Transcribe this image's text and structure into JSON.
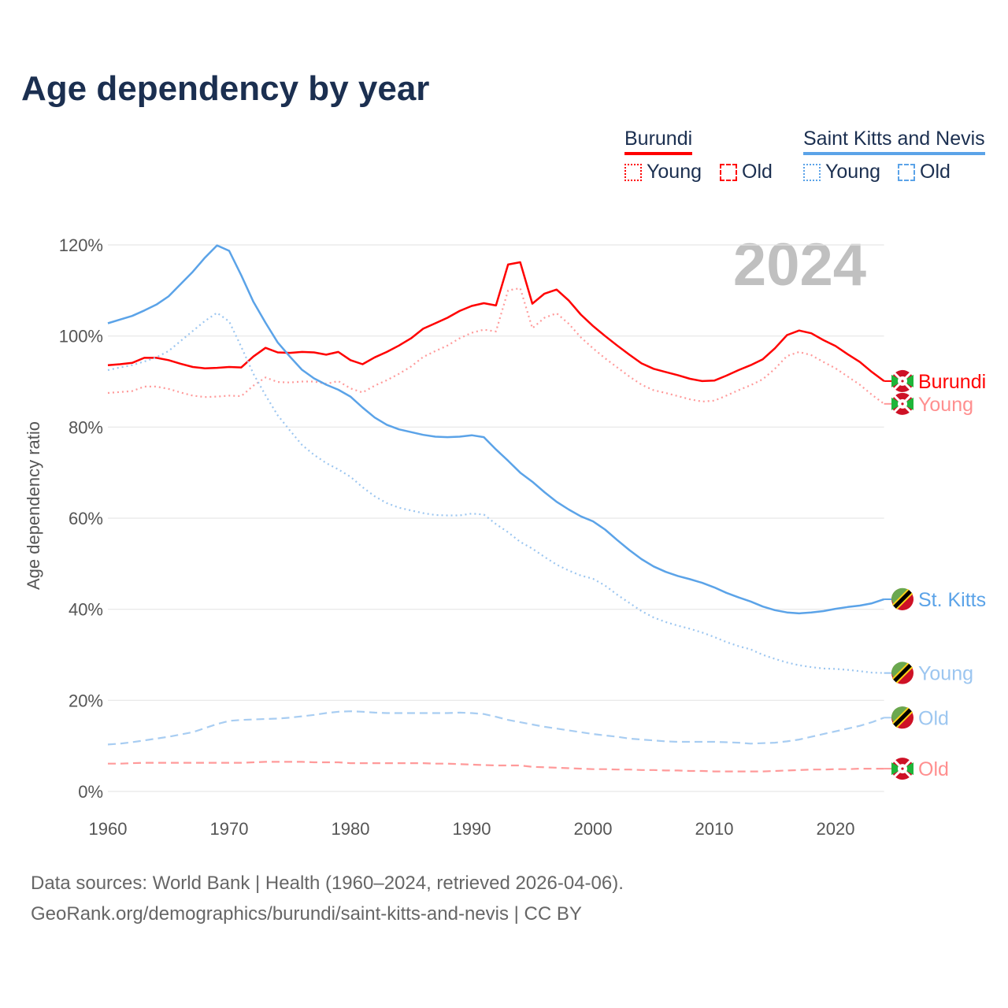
{
  "title": "Age dependency by year",
  "legend": {
    "groups": [
      {
        "name": "Burundi",
        "color": "#ff0000",
        "items": [
          {
            "label": "Young",
            "style": "dotted"
          },
          {
            "label": "Old",
            "style": "dashed"
          }
        ]
      },
      {
        "name": "Saint Kitts and Nevis",
        "color": "#5ba3e8",
        "items": [
          {
            "label": "Young",
            "style": "dotted"
          },
          {
            "label": "Old",
            "style": "dashed"
          }
        ]
      }
    ]
  },
  "year_watermark": "2024",
  "footer": {
    "line1": "Data sources: World Bank | Health (1960–2024, retrieved 2026-04-06).",
    "line2": "GeoRank.org/demographics/burundi/saint-kitts-and-nevis | CC BY"
  },
  "chart_data": {
    "type": "line",
    "title": "Age dependency by year",
    "xlabel": "",
    "ylabel": "Age dependency ratio",
    "xlim": [
      1960,
      2024
    ],
    "ylim": [
      0,
      120
    ],
    "x_ticks": [
      1960,
      1970,
      1980,
      1990,
      2000,
      2010,
      2020
    ],
    "y_ticks": [
      0,
      20,
      40,
      60,
      80,
      100,
      120
    ],
    "y_tick_labels": [
      "0%",
      "20%",
      "40%",
      "60%",
      "80%",
      "100%",
      "120%"
    ],
    "grid": true,
    "legend_position": "top-right",
    "x_start": 1960,
    "series": [
      {
        "name": "Burundi",
        "end_label": "Burundi",
        "flag": "burundi",
        "color": "#ff0000",
        "label_color": "#ff0000",
        "dash": "solid",
        "values": [
          93.6,
          93.8,
          94.1,
          95.2,
          95.2,
          94.7,
          93.9,
          93.2,
          92.9,
          93.0,
          93.2,
          93.1,
          95.5,
          97.4,
          96.4,
          96.3,
          96.5,
          96.4,
          95.9,
          96.5,
          94.7,
          93.8,
          95.3,
          96.5,
          97.9,
          99.5,
          101.6,
          102.8,
          104.0,
          105.5,
          106.6,
          107.2,
          106.7,
          115.7,
          116.2,
          107.1,
          109.3,
          110.2,
          107.8,
          104.7,
          102.2,
          100.0,
          97.9,
          95.9,
          94.0,
          92.8,
          92.1,
          91.4,
          90.6,
          90.1,
          90.2,
          91.3,
          92.5,
          93.6,
          94.9,
          97.3,
          100.2,
          101.2,
          100.6,
          99.1,
          97.8,
          96.0,
          94.3,
          92.1,
          90.1
        ]
      },
      {
        "name": "Burundi Young",
        "end_label": "Young",
        "flag": "burundi",
        "color": "#ff9a9a",
        "label_color": "#ff8f8f",
        "dash": "dotted",
        "values": [
          87.5,
          87.7,
          87.9,
          88.9,
          88.9,
          88.4,
          87.6,
          86.9,
          86.6,
          86.7,
          86.9,
          86.8,
          89.1,
          90.9,
          89.9,
          89.8,
          90.0,
          90.0,
          89.5,
          90.1,
          88.5,
          87.6,
          89.1,
          90.3,
          91.7,
          93.3,
          95.4,
          96.7,
          97.9,
          99.5,
          100.7,
          101.4,
          101.0,
          110.0,
          110.5,
          101.7,
          104.0,
          105.0,
          102.7,
          99.7,
          97.3,
          95.1,
          93.1,
          91.1,
          89.3,
          88.1,
          87.5,
          86.8,
          86.1,
          85.6,
          85.8,
          86.9,
          88.1,
          89.2,
          90.5,
          92.8,
          95.6,
          96.5,
          95.8,
          94.3,
          92.9,
          91.1,
          89.3,
          87.1,
          85.1
        ]
      },
      {
        "name": "Burundi Old",
        "end_label": "Old",
        "flag": "burundi",
        "color": "#ff9a9a",
        "label_color": "#ff8f8f",
        "dash": "dashed",
        "values": [
          6.1,
          6.1,
          6.2,
          6.3,
          6.3,
          6.3,
          6.3,
          6.3,
          6.3,
          6.3,
          6.3,
          6.3,
          6.4,
          6.5,
          6.5,
          6.5,
          6.5,
          6.4,
          6.4,
          6.4,
          6.2,
          6.2,
          6.2,
          6.2,
          6.2,
          6.2,
          6.2,
          6.1,
          6.1,
          6.0,
          5.9,
          5.8,
          5.7,
          5.7,
          5.7,
          5.4,
          5.3,
          5.2,
          5.1,
          5.0,
          4.9,
          4.9,
          4.8,
          4.8,
          4.7,
          4.7,
          4.6,
          4.6,
          4.5,
          4.5,
          4.4,
          4.4,
          4.4,
          4.4,
          4.4,
          4.5,
          4.6,
          4.7,
          4.8,
          4.8,
          4.9,
          4.9,
          5.0,
          5.0,
          5.0
        ]
      },
      {
        "name": "Saint Kitts and Nevis",
        "end_label": "St. Kitts",
        "flag": "kitts",
        "color": "#5ba3e8",
        "label_color": "#5ba3e8",
        "dash": "solid",
        "values": [
          102.8,
          103.6,
          104.4,
          105.6,
          106.9,
          108.7,
          111.4,
          114.1,
          117.2,
          119.9,
          118.7,
          113.3,
          107.5,
          102.9,
          98.6,
          95.5,
          92.6,
          90.7,
          89.3,
          88.2,
          86.7,
          84.3,
          82.1,
          80.5,
          79.5,
          78.9,
          78.3,
          77.9,
          77.8,
          77.9,
          78.2,
          77.8,
          75.1,
          72.6,
          70.0,
          68.0,
          65.7,
          63.6,
          61.9,
          60.4,
          59.3,
          57.5,
          55.2,
          53.0,
          51.0,
          49.4,
          48.2,
          47.3,
          46.6,
          45.8,
          44.8,
          43.6,
          42.6,
          41.7,
          40.6,
          39.8,
          39.3,
          39.1,
          39.3,
          39.6,
          40.1,
          40.5,
          40.8,
          41.3,
          42.2
        ]
      },
      {
        "name": "Saint Kitts and Nevis Young",
        "end_label": "Young",
        "flag": "kitts",
        "color": "#9cc6f0",
        "label_color": "#9cc6f0",
        "dash": "dotted",
        "values": [
          92.5,
          93.1,
          93.6,
          94.4,
          95.3,
          96.7,
          98.9,
          101.1,
          103.3,
          105.1,
          103.2,
          97.6,
          91.7,
          87.0,
          82.6,
          79.3,
          76.1,
          73.9,
          72.1,
          70.7,
          69.1,
          66.8,
          64.8,
          63.3,
          62.3,
          61.7,
          61.1,
          60.7,
          60.6,
          60.6,
          61.0,
          60.8,
          58.7,
          56.9,
          54.8,
          53.3,
          51.5,
          49.8,
          48.5,
          47.4,
          46.7,
          45.2,
          43.2,
          41.4,
          39.6,
          38.2,
          37.2,
          36.4,
          35.7,
          34.9,
          33.9,
          32.8,
          31.9,
          31.2,
          30.0,
          29.1,
          28.3,
          27.7,
          27.3,
          27.0,
          26.9,
          26.7,
          26.4,
          26.1,
          26.0
        ]
      },
      {
        "name": "Saint Kitts and Nevis Old",
        "end_label": "Old",
        "flag": "kitts",
        "color": "#a8cdf2",
        "label_color": "#9cc6f0",
        "dash": "dashed",
        "values": [
          10.3,
          10.5,
          10.8,
          11.2,
          11.6,
          12.0,
          12.5,
          13.0,
          13.9,
          14.8,
          15.5,
          15.7,
          15.8,
          15.9,
          16.0,
          16.2,
          16.5,
          16.8,
          17.2,
          17.5,
          17.6,
          17.5,
          17.3,
          17.2,
          17.2,
          17.2,
          17.2,
          17.2,
          17.2,
          17.3,
          17.2,
          17.0,
          16.4,
          15.7,
          15.2,
          14.7,
          14.2,
          13.8,
          13.4,
          13.0,
          12.6,
          12.3,
          12.0,
          11.6,
          11.4,
          11.2,
          11.0,
          10.9,
          10.9,
          10.9,
          10.9,
          10.8,
          10.7,
          10.5,
          10.6,
          10.7,
          11.0,
          11.4,
          12.0,
          12.6,
          13.2,
          13.8,
          14.4,
          15.2,
          16.2
        ]
      }
    ]
  }
}
